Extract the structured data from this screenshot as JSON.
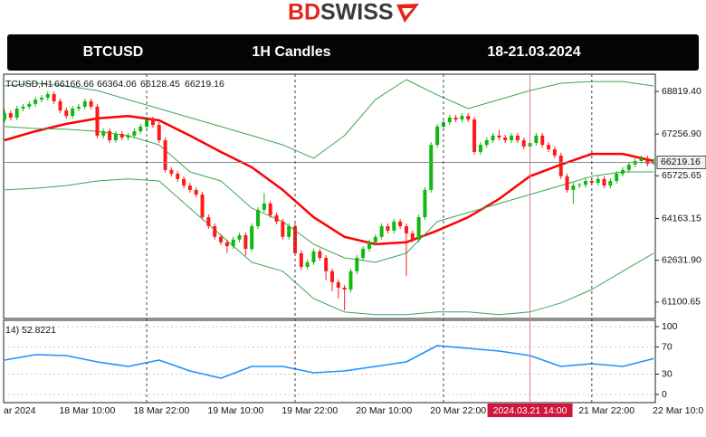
{
  "brand": {
    "logo_left": "BD",
    "logo_right": "SWISS"
  },
  "header": {
    "symbol": "BTCUSD",
    "timeframe": "1H Candles",
    "period": "18-21.03.2024"
  },
  "chart_data": [
    {
      "type": "candlestick",
      "symbol_label": "TCUSD,H1",
      "categories": [
        "ar 2024",
        null,
        null,
        null,
        null,
        null,
        null,
        null,
        null,
        "18 Mar 10:00",
        null,
        null,
        null,
        null,
        null,
        null,
        null,
        null,
        null,
        null,
        null,
        "18 Mar 22:00",
        null,
        null,
        null,
        null,
        null,
        null,
        null,
        null,
        null,
        null,
        null,
        "19 Mar 10:00",
        null,
        null,
        null,
        null,
        null,
        null,
        null,
        null,
        null,
        null,
        null,
        "19 Mar 22:00",
        null,
        null,
        null,
        null,
        null,
        null,
        null,
        null,
        null,
        null,
        null,
        "20 Mar 10:00",
        null,
        null,
        null,
        null,
        null,
        null,
        null,
        null,
        null,
        null,
        null,
        "20 Mar 22:00",
        null,
        null,
        null,
        null,
        null,
        null,
        null,
        null,
        null,
        null,
        null,
        null,
        null,
        null,
        null,
        "2024.03.21 14:00",
        null,
        null,
        null,
        null,
        null,
        null,
        null,
        "21 Mar 22:00",
        null,
        null,
        null,
        null,
        null,
        null,
        null,
        null,
        null,
        null,
        null,
        "22 Mar 10:0"
      ],
      "crosshair_index": 85,
      "candles": [
        [
          67790,
          68150,
          67690,
          68020
        ],
        [
          68020,
          68120,
          67760,
          67860
        ],
        [
          67860,
          68290,
          67760,
          68190
        ],
        [
          68190,
          68360,
          68090,
          68260
        ],
        [
          68260,
          68460,
          68160,
          68360
        ],
        [
          68360,
          68620,
          68260,
          68520
        ],
        [
          68520,
          68690,
          68420,
          68590
        ],
        [
          68590,
          68820,
          68490,
          68720
        ],
        [
          68720,
          68820,
          68360,
          68460
        ],
        [
          68460,
          68560,
          68020,
          68120
        ],
        [
          68120,
          68220,
          67820,
          67920
        ],
        [
          67920,
          68290,
          67820,
          68190
        ],
        [
          68190,
          68360,
          68090,
          68260
        ],
        [
          68260,
          68560,
          68160,
          68460
        ],
        [
          68460,
          68560,
          68160,
          68260
        ],
        [
          68260,
          68360,
          67100,
          67200
        ],
        [
          67200,
          67460,
          67100,
          67360
        ],
        [
          67360,
          67460,
          66930,
          67030
        ],
        [
          67030,
          67360,
          66930,
          67260
        ],
        [
          67260,
          67360,
          67030,
          67130
        ],
        [
          67130,
          67300,
          67030,
          67200
        ],
        [
          67200,
          67460,
          67100,
          67360
        ],
        [
          67360,
          67630,
          67260,
          67530
        ],
        [
          67530,
          67890,
          67430,
          67790
        ],
        [
          67790,
          67890,
          67490,
          67590
        ],
        [
          67590,
          67690,
          66930,
          67030
        ],
        [
          67030,
          67130,
          65840,
          65940
        ],
        [
          65940,
          66040,
          65700,
          65800
        ],
        [
          65800,
          65900,
          65510,
          65610
        ],
        [
          65610,
          65710,
          65270,
          65370
        ],
        [
          65370,
          65470,
          65110,
          65210
        ],
        [
          65210,
          65310,
          64940,
          65040
        ],
        [
          65040,
          65140,
          64110,
          64210
        ],
        [
          64210,
          64310,
          63780,
          63880
        ],
        [
          63880,
          63980,
          63390,
          63490
        ],
        [
          63490,
          63590,
          63190,
          63290
        ],
        [
          63290,
          63390,
          62900,
          63150
        ],
        [
          63150,
          63490,
          63050,
          63390
        ],
        [
          63390,
          63650,
          63290,
          63550
        ],
        [
          63550,
          63650,
          62800,
          63050
        ],
        [
          63050,
          63980,
          62950,
          63880
        ],
        [
          63880,
          64580,
          63780,
          64480
        ],
        [
          64480,
          65100,
          64380,
          64710
        ],
        [
          64710,
          64810,
          64180,
          64280
        ],
        [
          64280,
          64380,
          63950,
          64050
        ],
        [
          64050,
          64150,
          63390,
          63490
        ],
        [
          63490,
          63980,
          63390,
          63880
        ],
        [
          63880,
          63980,
          62790,
          62890
        ],
        [
          62890,
          62990,
          62290,
          62390
        ],
        [
          62390,
          62660,
          62290,
          62560
        ],
        [
          62560,
          63060,
          62460,
          62960
        ],
        [
          62960,
          63060,
          62620,
          62720
        ],
        [
          62720,
          62820,
          61900,
          62230
        ],
        [
          62230,
          62330,
          61500,
          61830
        ],
        [
          61830,
          61930,
          61230,
          61630
        ],
        [
          61630,
          61730,
          60800,
          61560
        ],
        [
          61560,
          62330,
          61460,
          62230
        ],
        [
          62230,
          62820,
          62130,
          62720
        ],
        [
          62720,
          63150,
          62620,
          63050
        ],
        [
          63050,
          63390,
          62950,
          63290
        ],
        [
          63290,
          63590,
          63190,
          63490
        ],
        [
          63490,
          63980,
          63390,
          63880
        ],
        [
          63880,
          63980,
          63620,
          63720
        ],
        [
          63720,
          64150,
          63620,
          64050
        ],
        [
          64050,
          64150,
          63780,
          63880
        ],
        [
          63880,
          63980,
          62050,
          63620
        ],
        [
          63620,
          63720,
          63290,
          63390
        ],
        [
          63390,
          64310,
          63290,
          64210
        ],
        [
          64210,
          65310,
          64110,
          65210
        ],
        [
          65210,
          66960,
          65110,
          66860
        ],
        [
          66860,
          67630,
          66760,
          67530
        ],
        [
          67530,
          67790,
          67430,
          67690
        ],
        [
          67690,
          67960,
          67590,
          67860
        ],
        [
          67860,
          67960,
          67690,
          67790
        ],
        [
          67790,
          68020,
          67690,
          67920
        ],
        [
          67920,
          68020,
          67690,
          67790
        ],
        [
          67790,
          67890,
          66500,
          66600
        ],
        [
          66600,
          66960,
          66500,
          66860
        ],
        [
          66860,
          67130,
          66760,
          67030
        ],
        [
          67030,
          67300,
          66930,
          67200
        ],
        [
          67200,
          67400,
          67030,
          67130
        ],
        [
          67130,
          67230,
          66930,
          67030
        ],
        [
          67030,
          67300,
          66930,
          67200
        ],
        [
          67200,
          67300,
          66930,
          67030
        ],
        [
          67030,
          67130,
          66700,
          66800
        ],
        [
          66800,
          67030,
          66700,
          66930
        ],
        [
          66930,
          67300,
          66830,
          67200
        ],
        [
          67200,
          67300,
          66760,
          66860
        ],
        [
          66860,
          66960,
          66600,
          66700
        ],
        [
          66700,
          66800,
          66370,
          66470
        ],
        [
          66470,
          66570,
          65610,
          65710
        ],
        [
          65710,
          65810,
          65110,
          65210
        ],
        [
          65210,
          65470,
          64700,
          65370
        ],
        [
          65370,
          65470,
          65270,
          65400
        ],
        [
          65400,
          65640,
          65300,
          65540
        ],
        [
          65540,
          65640,
          65370,
          65470
        ],
        [
          65470,
          65710,
          65370,
          65610
        ],
        [
          65610,
          65710,
          65270,
          65370
        ],
        [
          65370,
          65640,
          65270,
          65540
        ],
        [
          65540,
          65900,
          65440,
          65800
        ],
        [
          65800,
          66040,
          65700,
          65940
        ],
        [
          65940,
          66240,
          65840,
          66140
        ],
        [
          66140,
          66370,
          66040,
          66270
        ],
        [
          66270,
          66470,
          66170,
          66370
        ],
        [
          66370,
          66470,
          66070,
          66170
        ],
        [
          66166.66,
          66364.06,
          66128.45,
          66219.16
        ]
      ],
      "up_color": "#10b910",
      "down_color": "#ff1a1a",
      "lines": [
        {
          "color": "#ff0000",
          "width": 2.5,
          "x": [
            0,
            5,
            10,
            15,
            20,
            25,
            30,
            35,
            40,
            45,
            50,
            55,
            60,
            65,
            70,
            75,
            80,
            85,
            90,
            95,
            100,
            105
          ],
          "values": [
            67030,
            67360,
            67630,
            67830,
            67920,
            67760,
            67200,
            66600,
            66040,
            65210,
            64210,
            63490,
            63220,
            63290,
            63720,
            64210,
            64880,
            65710,
            66140,
            66530,
            66530,
            66270
          ]
        },
        {
          "color": "#3aa655",
          "width": 1,
          "x": [
            0,
            5,
            10,
            15,
            20,
            25,
            30,
            35,
            40,
            45,
            50,
            55,
            60,
            65,
            70,
            75,
            80,
            85,
            90,
            95,
            100,
            105
          ],
          "values": [
            69020,
            69120,
            69020,
            68850,
            68520,
            68190,
            67860,
            67530,
            67200,
            66860,
            66370,
            67200,
            68520,
            69250,
            68690,
            68190,
            68520,
            68850,
            69120,
            69180,
            69180,
            69020
          ]
        },
        {
          "color": "#3aa655",
          "width": 1,
          "x": [
            0,
            5,
            10,
            15,
            20,
            25,
            30,
            35,
            40,
            45,
            50,
            55,
            60,
            65,
            70,
            75,
            80,
            85,
            90,
            95,
            100,
            105
          ],
          "values": [
            67530,
            67460,
            67430,
            67360,
            67200,
            66860,
            65870,
            65540,
            64540,
            64050,
            63220,
            62720,
            62560,
            62890,
            64050,
            64380,
            64710,
            65040,
            65370,
            65710,
            65870,
            65870
          ]
        },
        {
          "color": "#3aa655",
          "width": 1,
          "x": [
            0,
            5,
            10,
            15,
            20,
            25,
            30,
            35,
            40,
            45,
            50,
            55,
            60,
            65,
            70,
            75,
            80,
            85,
            90,
            95,
            100,
            105
          ],
          "values": [
            65210,
            65270,
            65370,
            65540,
            65610,
            65540,
            64540,
            63550,
            62560,
            62230,
            61230,
            60740,
            60640,
            60640,
            60740,
            60740,
            60640,
            60740,
            61070,
            61560,
            62230,
            62890
          ]
        }
      ],
      "ylim": [
        60500,
        69450
      ],
      "yticks": [
        {
          "value": 68819.4,
          "label": "68819.40"
        },
        {
          "value": 67256.9,
          "label": "67256.90"
        },
        {
          "value": 65725.65,
          "label": "65725.65"
        },
        {
          "value": 64163.15,
          "label": "64163.15"
        },
        {
          "value": 62631.9,
          "label": "62631.90"
        },
        {
          "value": 61100.65,
          "label": "61100.65"
        }
      ],
      "current_price_line": true
    },
    {
      "type": "line",
      "label": "14)",
      "x": [
        0,
        5,
        10,
        15,
        20,
        25,
        30,
        35,
        40,
        45,
        50,
        55,
        60,
        65,
        70,
        75,
        80,
        85,
        90,
        95,
        100,
        105
      ],
      "values": [
        50.7,
        58.7,
        57.3,
        48,
        41.3,
        50.7,
        34.7,
        24,
        41.3,
        41.3,
        32,
        34.7,
        41.3,
        48,
        72,
        68,
        64,
        57.3,
        41.3,
        45.3,
        41.3,
        52.8221
      ],
      "color": "#1e90ff",
      "ylim": [
        -12,
        109.3
      ],
      "yticks": [
        100,
        70,
        30,
        0
      ]
    }
  ]
}
